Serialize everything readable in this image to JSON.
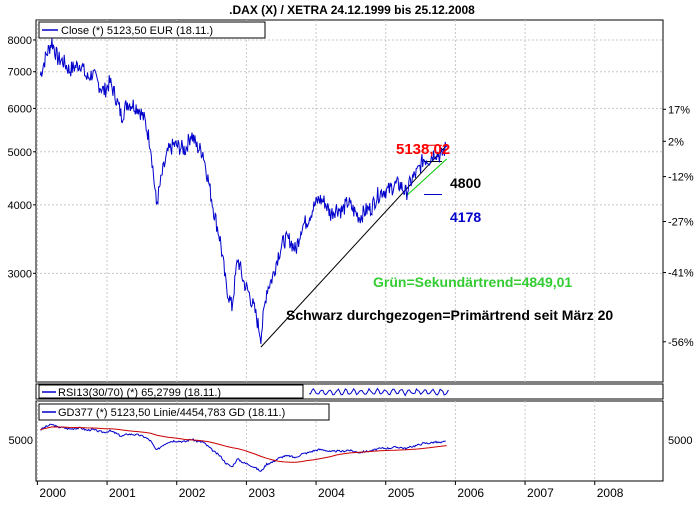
{
  "chart_data": [
    {
      "type": "line",
      "title": ".DAX (X) / XETRA 24.12.1999 bis 25.12.2008",
      "scale": "log",
      "ylim": [
        1900,
        8700
      ],
      "left_ticks": [
        {
          "value": 8000,
          "label": "8000"
        },
        {
          "value": 7000,
          "label": "7000"
        },
        {
          "value": 6000,
          "label": "6000"
        },
        {
          "value": 5000,
          "label": "5000"
        },
        {
          "value": 4000,
          "label": "4000"
        },
        {
          "value": 3000,
          "label": "3000"
        }
      ],
      "right_ticks": [
        {
          "value": 5978,
          "label": "17%"
        },
        {
          "value": 5225,
          "label": "2%"
        },
        {
          "value": 4505,
          "label": "-12%"
        },
        {
          "value": 3730,
          "label": "-27%"
        },
        {
          "value": 3010,
          "label": "-41%"
        },
        {
          "value": 2250,
          "label": "-56%"
        }
      ],
      "legend": "Close (*) 5123,50 EUR (18.11.)",
      "grid": true,
      "series": [
        {
          "name": "Close",
          "color": "#0000cc",
          "points": [
            [
              "2000-01",
              6900
            ],
            [
              "2000-02",
              7500
            ],
            [
              "2000-03",
              7950
            ],
            [
              "2000-04",
              7400
            ],
            [
              "2000-05",
              7300
            ],
            [
              "2000-06",
              7050
            ],
            [
              "2000-07",
              7150
            ],
            [
              "2000-08",
              7250
            ],
            [
              "2000-09",
              6800
            ],
            [
              "2000-10",
              6950
            ],
            [
              "2000-11",
              6650
            ],
            [
              "2000-12",
              6450
            ],
            [
              "2001-01",
              6700
            ],
            [
              "2001-02",
              6300
            ],
            [
              "2001-03",
              5800
            ],
            [
              "2001-04",
              6150
            ],
            [
              "2001-05",
              6100
            ],
            [
              "2001-06",
              6000
            ],
            [
              "2001-07",
              5700
            ],
            [
              "2001-08",
              5150
            ],
            [
              "2001-09",
              4000
            ],
            [
              "2001-10",
              4550
            ],
            [
              "2001-11",
              5000
            ],
            [
              "2001-12",
              5150
            ],
            [
              "2002-01",
              5100
            ],
            [
              "2002-02",
              5050
            ],
            [
              "2002-03",
              5400
            ],
            [
              "2002-04",
              5100
            ],
            [
              "2002-05",
              5000
            ],
            [
              "2002-06",
              4400
            ],
            [
              "2002-07",
              3850
            ],
            [
              "2002-08",
              3450
            ],
            [
              "2002-09",
              2850
            ],
            [
              "2002-10",
              2600
            ],
            [
              "2002-11",
              3200
            ],
            [
              "2002-12",
              2900
            ],
            [
              "2003-01",
              2750
            ],
            [
              "2003-02",
              2550
            ],
            [
              "2003-03",
              2300
            ],
            [
              "2003-04",
              2800
            ],
            [
              "2003-05",
              2950
            ],
            [
              "2003-06",
              3250
            ],
            [
              "2003-07",
              3450
            ],
            [
              "2003-08",
              3450
            ],
            [
              "2003-09",
              3300
            ],
            [
              "2003-10",
              3650
            ],
            [
              "2003-11",
              3750
            ],
            [
              "2003-12",
              3950
            ],
            [
              "2004-01",
              4100
            ],
            [
              "2004-02",
              4050
            ],
            [
              "2004-03",
              3850
            ],
            [
              "2004-04",
              3950
            ],
            [
              "2004-05",
              3900
            ],
            [
              "2004-06",
              4050
            ],
            [
              "2004-07",
              3900
            ],
            [
              "2004-08",
              3800
            ],
            [
              "2004-09",
              3900
            ],
            [
              "2004-10",
              3950
            ],
            [
              "2004-11",
              4150
            ],
            [
              "2004-12",
              4250
            ],
            [
              "2005-01",
              4250
            ],
            [
              "2005-02",
              4350
            ],
            [
              "2005-03",
              4350
            ],
            [
              "2005-04",
              4200
            ],
            [
              "2005-05",
              4450
            ],
            [
              "2005-06",
              4600
            ],
            [
              "2005-07",
              4850
            ],
            [
              "2005-08",
              4850
            ],
            [
              "2005-09",
              5000
            ],
            [
              "2005-10",
              4900
            ],
            [
              "2005-11",
              5123.5
            ]
          ]
        }
      ],
      "annotations": {
        "price_high": "5138,02",
        "level_mid": "4800",
        "level_low": "4178",
        "green_text": "Grün=Sekundärtrend=4849,01",
        "black_text": "Schwarz durchgezogen=Primärtrend seit März 20"
      },
      "levels": [
        {
          "label": "5138,02",
          "value": 5138.02
        },
        {
          "label": "4800",
          "value": 4800
        },
        {
          "label": "4178",
          "value": 4178
        }
      ],
      "trendlines": [
        {
          "name": "Primärtrend",
          "color": "#000000",
          "from": [
            "2003-03",
            2200
          ],
          "to": [
            "2005-11",
            5140
          ]
        },
        {
          "name": "Sekundärtrend",
          "color": "#00cc00",
          "from": [
            "2005-04",
            4150
          ],
          "to": [
            "2005-11",
            4850
          ]
        }
      ]
    },
    {
      "type": "line",
      "legend": "RSI13(30/70)  (*) 65,2799 (18.11.)"
    },
    {
      "type": "line",
      "legend": "GD377  (*) 5123,50 Linie/4454,783 GD (18.11.)",
      "right_ticks": [
        {
          "value": 5000,
          "label": "5000"
        }
      ],
      "left_ticks": [
        {
          "value": 5000,
          "label": "5000"
        }
      ]
    }
  ],
  "x_axis": {
    "labels": [
      "2000",
      "2001",
      "2002",
      "2003",
      "2004",
      "2005",
      "2006",
      "2007",
      "2008"
    ]
  },
  "colors": {
    "close": "#0000cc",
    "gd": "#cc0000",
    "high_label": "#ff0000",
    "low_label": "#0000cc",
    "green": "#33cc33"
  }
}
